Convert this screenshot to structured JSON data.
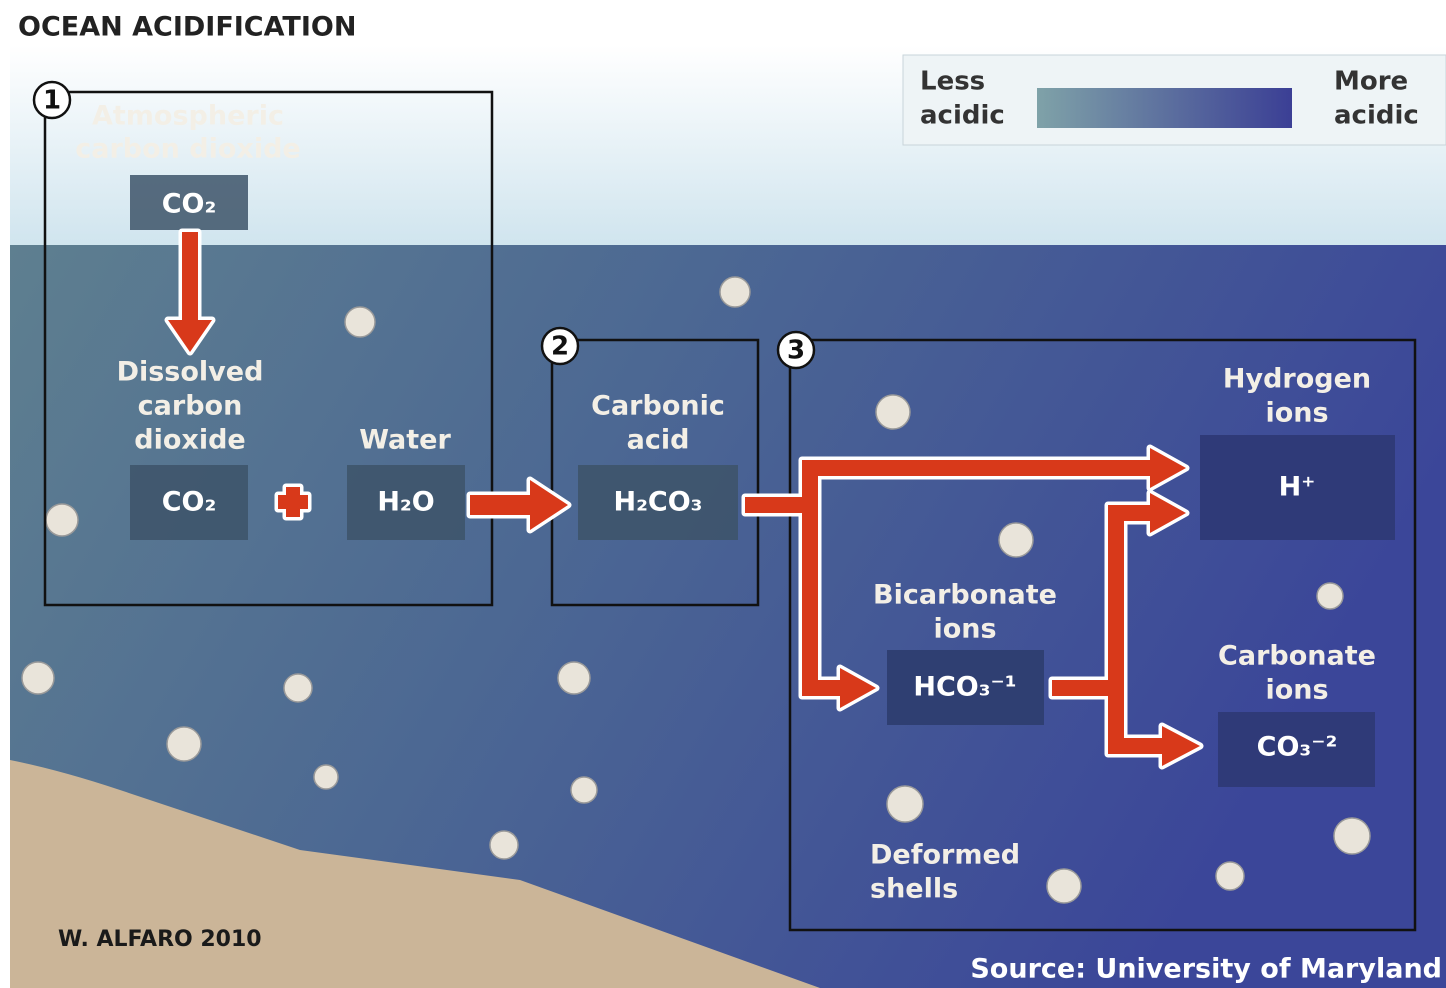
{
  "title": "OCEAN ACIDIFICATION",
  "legend": {
    "low": [
      "Less",
      "acidic"
    ],
    "high": [
      "More",
      "acidic"
    ]
  },
  "steps": [
    "1",
    "2",
    "3"
  ],
  "nodes": [
    {
      "label": [
        "Atmospheric",
        "carbon dioxide"
      ],
      "formula": "CO₂"
    },
    {
      "label": [
        "Dissolved",
        "carbon",
        "dioxide"
      ],
      "formula": "CO₂"
    },
    {
      "label": [
        "Water"
      ],
      "formula": "H₂O"
    },
    {
      "label": [
        "Carbonic",
        "acid"
      ],
      "formula": "H₂CO₃"
    },
    {
      "label": [
        "Hydrogen",
        "ions"
      ],
      "formula": "H⁺"
    },
    {
      "label": [
        "Bicarbonate",
        "ions"
      ],
      "formula": "HCO₃⁻¹"
    },
    {
      "label": [
        "Carbonate",
        "ions"
      ],
      "formula": "CO₃⁻²"
    }
  ],
  "annotation": [
    "Deformed",
    "shells"
  ],
  "credit": "W. ALFARO  2010",
  "source": "Source: University of Maryland"
}
